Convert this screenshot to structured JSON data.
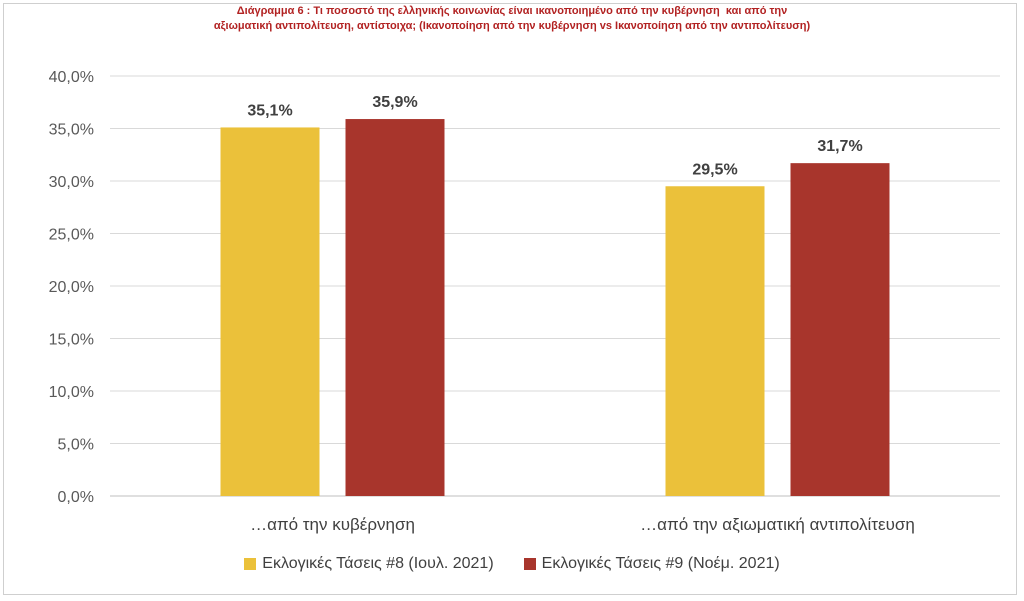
{
  "title": {
    "line1": "Διάγραμμα 6 : Τι ποσοστό της ελληνικής κοινωνίας είναι ικανοποιημένο από την κυβέρνηση  και από την",
    "line2": "αξιωματική αντιπολίτευση, αντίστοιχα; (Ικανοποίηση από την κυβέρνηση vs Ικανοποίηση από την αντιπολίτευση)"
  },
  "colors": {
    "series1": "#EBC13A",
    "series2": "#A8352C",
    "grid": "#d9d9d9"
  },
  "chart_data": {
    "type": "bar",
    "categories": [
      "…από την κυβέρνηση",
      "…από την αξιωματική αντιπολίτευση"
    ],
    "series": [
      {
        "name": "Εκλογικές Τάσεις #8 (Ιουλ. 2021)",
        "values": [
          35.1,
          29.5
        ],
        "labels": [
          "35,1%",
          "29,5%"
        ]
      },
      {
        "name": "Εκλογικές Τάσεις #9 (Νοέμ. 2021)",
        "values": [
          35.9,
          31.7
        ],
        "labels": [
          "35,9%",
          "31,7%"
        ]
      }
    ],
    "ylim": [
      0,
      40
    ],
    "yticks": [
      "0,0%",
      "5,0%",
      "10,0%",
      "15,0%",
      "20,0%",
      "25,0%",
      "30,0%",
      "35,0%",
      "40,0%"
    ],
    "grid": true,
    "legend": "bottom"
  }
}
